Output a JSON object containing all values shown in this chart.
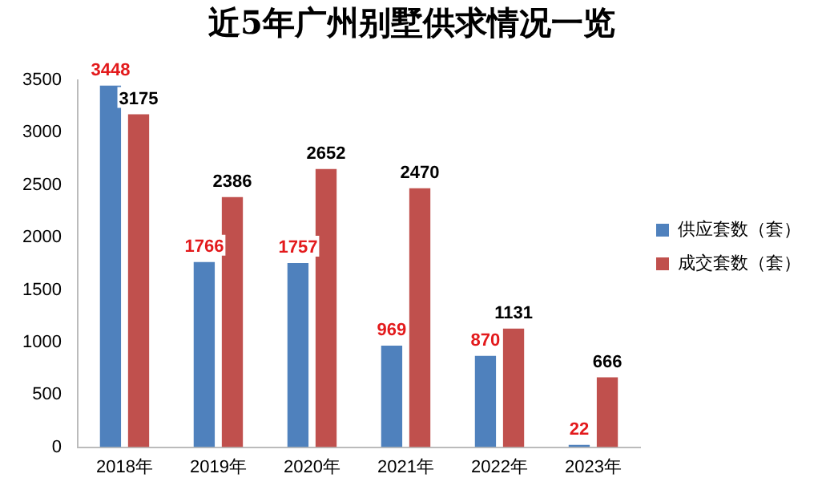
{
  "chart_data": {
    "type": "bar",
    "title": "近5年广州别墅供求情况一览",
    "categories": [
      "2018年",
      "2019年",
      "2020年",
      "2021年",
      "2022年",
      "2023年"
    ],
    "series": [
      {
        "name": "供应套数（套）",
        "color": "#4f81bd",
        "values": [
          3448,
          1766,
          1757,
          969,
          870,
          22
        ]
      },
      {
        "name": "成交套数（套）",
        "color": "#c0504d",
        "values": [
          3175,
          2386,
          2652,
          2470,
          1131,
          666
        ]
      }
    ],
    "ylim": [
      0,
      3500
    ],
    "yticks": [
      0,
      500,
      1000,
      1500,
      2000,
      2500,
      3000,
      3500
    ],
    "grid": false,
    "legend": "right",
    "data_labels": true
  }
}
